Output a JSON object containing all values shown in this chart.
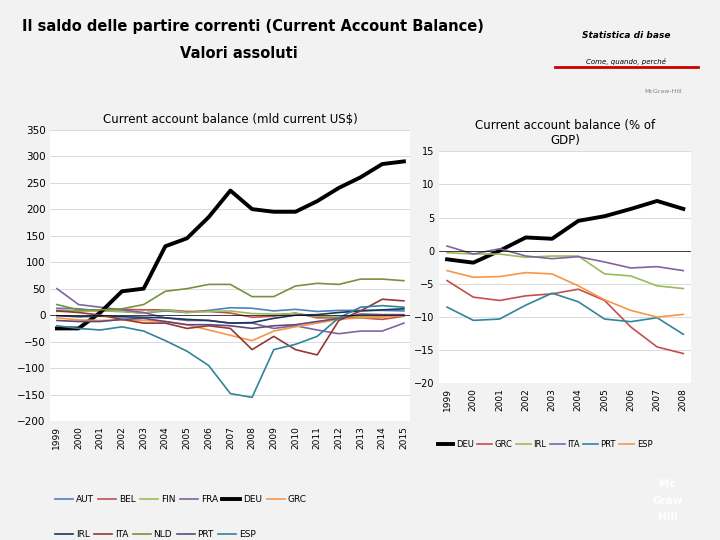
{
  "title_line1": "Il saldo delle partire correnti (Current Account Balance)",
  "title_line2": "Valori assoluti",
  "chart1": {
    "title": "Current account balance (mld current US$)",
    "years": [
      1999,
      2000,
      2001,
      2002,
      2003,
      2004,
      2005,
      2006,
      2007,
      2008,
      2009,
      2010,
      2011,
      2012,
      2013,
      2014,
      2015
    ],
    "series": {
      "AUT": {
        "color": "#4f81bd",
        "lw": 1.2,
        "data": [
          13,
          12,
          8,
          7,
          4,
          8,
          5,
          9,
          14,
          13,
          8,
          11,
          7,
          9,
          9,
          9,
          8
        ]
      },
      "BEL": {
        "color": "#c0504d",
        "lw": 1.2,
        "data": [
          9,
          8,
          9,
          11,
          10,
          10,
          7,
          7,
          4,
          -4,
          -2,
          4,
          -5,
          -5,
          -5,
          -8,
          -2
        ]
      },
      "FIN": {
        "color": "#9bbb59",
        "lw": 1.2,
        "data": [
          7,
          8,
          8,
          7,
          4,
          10,
          5,
          7,
          8,
          3,
          2,
          3,
          -2,
          -3,
          -2,
          -2,
          -1
        ]
      },
      "FRA": {
        "color": "#8064a2",
        "lw": 1.2,
        "data": [
          50,
          20,
          15,
          10,
          5,
          -5,
          -10,
          -10,
          -15,
          -15,
          -25,
          -20,
          -28,
          -35,
          -30,
          -30,
          -15
        ]
      },
      "DEU": {
        "color": "#000000",
        "lw": 2.8,
        "data": [
          -25,
          -25,
          5,
          45,
          50,
          130,
          145,
          185,
          235,
          200,
          195,
          195,
          215,
          240,
          260,
          285,
          290
        ]
      },
      "GRC": {
        "color": "#f79646",
        "lw": 1.2,
        "data": [
          -5,
          -9,
          -10,
          -9,
          -10,
          -12,
          -18,
          -28,
          -38,
          -48,
          -30,
          -22,
          -15,
          -8,
          -5,
          -4,
          0
        ]
      },
      "IRL": {
        "color": "#17375e",
        "lw": 1.2,
        "data": [
          -1,
          -3,
          -2,
          -3,
          -4,
          -5,
          -8,
          -10,
          -15,
          -14,
          -6,
          0,
          1,
          5,
          8,
          10,
          12
        ]
      },
      "ITA": {
        "color": "#953735",
        "lw": 1.2,
        "data": [
          8,
          5,
          0,
          -8,
          -15,
          -15,
          -25,
          -20,
          -25,
          -65,
          -40,
          -65,
          -75,
          -10,
          8,
          30,
          27
        ]
      },
      "NLD": {
        "color": "#76923c",
        "lw": 1.2,
        "data": [
          20,
          10,
          10,
          12,
          20,
          45,
          50,
          58,
          58,
          35,
          35,
          55,
          60,
          58,
          68,
          68,
          65
        ]
      },
      "PRT": {
        "color": "#5f497a",
        "lw": 1.2,
        "data": [
          -10,
          -12,
          -12,
          -8,
          -6,
          -12,
          -18,
          -18,
          -20,
          -25,
          -20,
          -18,
          -12,
          -6,
          2,
          1,
          1
        ]
      },
      "ESP": {
        "color": "#31849b",
        "lw": 1.2,
        "data": [
          -20,
          -25,
          -28,
          -22,
          -30,
          -48,
          -68,
          -95,
          -148,
          -155,
          -65,
          -55,
          -40,
          -5,
          15,
          18,
          15
        ]
      }
    },
    "ylim": [
      -200,
      350
    ],
    "yticks": [
      -200,
      -150,
      -100,
      -50,
      0,
      50,
      100,
      150,
      200,
      250,
      300,
      350
    ]
  },
  "chart2": {
    "title": "Current account balance (% of\nGDP)",
    "years": [
      1999,
      2000,
      2001,
      2002,
      2003,
      2004,
      2005,
      2006,
      2007,
      2008
    ],
    "series": {
      "DEU": {
        "color": "#000000",
        "lw": 2.8,
        "data": [
          -1.3,
          -1.8,
          0,
          2,
          1.8,
          4.5,
          5.2,
          6.3,
          7.5,
          6.3
        ]
      },
      "GRC": {
        "color": "#c0504d",
        "lw": 1.2,
        "data": [
          -4.5,
          -7,
          -7.5,
          -6.8,
          -6.5,
          -5.8,
          -7.5,
          -11.5,
          -14.5,
          -15.5
        ]
      },
      "IRL": {
        "color": "#9bbb59",
        "lw": 1.2,
        "data": [
          -0.3,
          -0.5,
          -0.5,
          -1.0,
          -0.8,
          -0.8,
          -3.5,
          -3.8,
          -5.3,
          -5.7
        ]
      },
      "ITA": {
        "color": "#8064a2",
        "lw": 1.2,
        "data": [
          0.7,
          -0.5,
          0.3,
          -0.8,
          -1.2,
          -0.9,
          -1.7,
          -2.6,
          -2.4,
          -3.0
        ]
      },
      "PRT": {
        "color": "#31849b",
        "lw": 1.2,
        "data": [
          -8.5,
          -10.5,
          -10.3,
          -8.2,
          -6.4,
          -7.7,
          -10.3,
          -10.7,
          -10.1,
          -12.6
        ]
      },
      "ESP": {
        "color": "#f79646",
        "lw": 1.2,
        "data": [
          -3.0,
          -4.0,
          -3.9,
          -3.3,
          -3.5,
          -5.3,
          -7.4,
          -9.0,
          -10.0,
          -9.6
        ]
      }
    },
    "ylim": [
      -20,
      15
    ],
    "yticks": [
      -20,
      -15,
      -10,
      -5,
      0,
      5,
      10,
      15
    ]
  },
  "slide_bg": "#f2f2f2",
  "chart_bg": "#ffffff",
  "footer_color": "#1f5c99",
  "mcgrawhill_box_color": "#cc0000"
}
